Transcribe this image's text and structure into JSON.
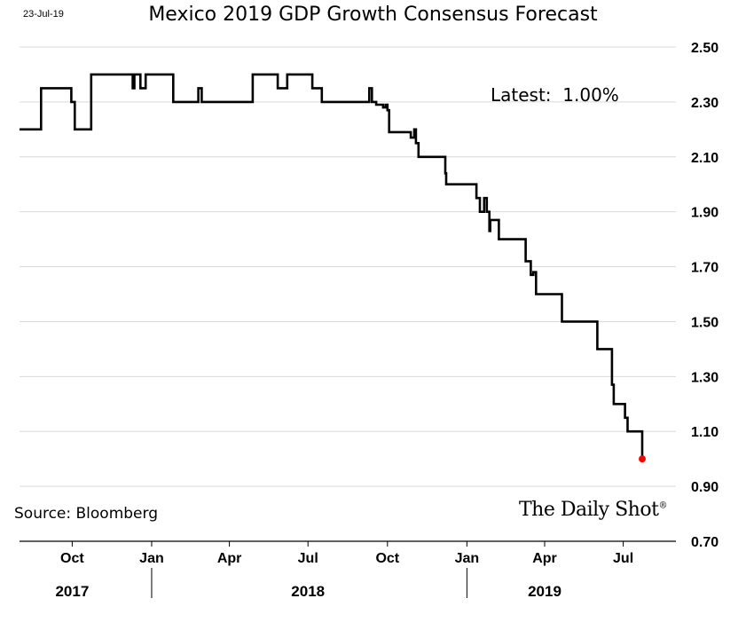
{
  "date_stamp": "23-Jul-19",
  "latest_text": "Latest:  1.00%",
  "source_text": "Source: Bloomberg",
  "logo": {
    "text": "The Daily Shot",
    "mark": "®"
  },
  "colors": {
    "line": "#000000",
    "latest_marker": "#ff0000",
    "grid": "#d9d9d9",
    "axis": "#000000"
  },
  "chart_data": {
    "type": "line",
    "title": "Mexico 2019 GDP Growth Consensus Forecast",
    "xlabel": "",
    "ylabel": "",
    "ylim": [
      0.7,
      2.5
    ],
    "yticks": [
      0.7,
      0.9,
      1.1,
      1.3,
      1.5,
      1.7,
      1.9,
      2.1,
      2.3,
      2.5
    ],
    "ytick_labels": [
      "0.70",
      "0.90",
      "1.10",
      "1.30",
      "1.50",
      "1.70",
      "1.90",
      "2.10",
      "2.30",
      "2.50"
    ],
    "xlim": [
      "2017-08-01",
      "2019-08-31"
    ],
    "month_ticks": [
      {
        "date": "2017-10-01",
        "label": "Oct"
      },
      {
        "date": "2018-01-01",
        "label": "Jan"
      },
      {
        "date": "2018-04-01",
        "label": "Apr"
      },
      {
        "date": "2018-07-01",
        "label": "Jul"
      },
      {
        "date": "2018-10-01",
        "label": "Oct"
      },
      {
        "date": "2019-01-01",
        "label": "Jan"
      },
      {
        "date": "2019-04-01",
        "label": "Apr"
      },
      {
        "date": "2019-07-01",
        "label": "Jul"
      }
    ],
    "year_labels": [
      {
        "label": "2017",
        "date": "2017-10-01"
      },
      {
        "label": "2018",
        "date": "2018-07-01"
      },
      {
        "label": "2019",
        "date": "2019-04-01"
      }
    ],
    "year_dividers": [
      "2018-01-01",
      "2019-01-01"
    ],
    "grid": "horizontal",
    "series": [
      {
        "step": true,
        "points": [
          [
            "2017-08-01",
            2.2
          ],
          [
            "2017-08-26",
            2.35
          ],
          [
            "2017-09-30",
            2.3
          ],
          [
            "2017-10-04",
            2.2
          ],
          [
            "2017-10-23",
            2.4
          ],
          [
            "2017-12-10",
            2.35
          ],
          [
            "2017-12-12",
            2.4
          ],
          [
            "2017-12-19",
            2.35
          ],
          [
            "2017-12-25",
            2.4
          ],
          [
            "2018-01-26",
            2.3
          ],
          [
            "2018-02-24",
            2.35
          ],
          [
            "2018-02-28",
            2.3
          ],
          [
            "2018-04-28",
            2.4
          ],
          [
            "2018-05-27",
            2.35
          ],
          [
            "2018-06-07",
            2.4
          ],
          [
            "2018-07-06",
            2.35
          ],
          [
            "2018-07-17",
            2.3
          ],
          [
            "2018-09-10",
            2.35
          ],
          [
            "2018-09-13",
            2.3
          ],
          [
            "2018-09-18",
            2.29
          ],
          [
            "2018-09-26",
            2.28
          ],
          [
            "2018-09-29",
            2.29
          ],
          [
            "2018-10-01",
            2.27
          ],
          [
            "2018-10-03",
            2.19
          ],
          [
            "2018-10-28",
            2.17
          ],
          [
            "2018-11-01",
            2.2
          ],
          [
            "2018-11-03",
            2.15
          ],
          [
            "2018-11-06",
            2.1
          ],
          [
            "2018-12-07",
            2.04
          ],
          [
            "2018-12-08",
            2.0
          ],
          [
            "2019-01-12",
            1.95
          ],
          [
            "2019-01-16",
            1.9
          ],
          [
            "2019-01-21",
            1.95
          ],
          [
            "2019-01-24",
            1.9
          ],
          [
            "2019-01-27",
            1.83
          ],
          [
            "2019-01-28",
            1.87
          ],
          [
            "2019-02-07",
            1.8
          ],
          [
            "2019-03-10",
            1.72
          ],
          [
            "2019-03-16",
            1.67
          ],
          [
            "2019-03-19",
            1.68
          ],
          [
            "2019-03-22",
            1.6
          ],
          [
            "2019-04-21",
            1.5
          ],
          [
            "2019-06-01",
            1.4
          ],
          [
            "2019-06-18",
            1.27
          ],
          [
            "2019-06-20",
            1.2
          ],
          [
            "2019-07-03",
            1.15
          ],
          [
            "2019-07-06",
            1.1
          ],
          [
            "2019-07-23",
            1.0
          ]
        ]
      }
    ],
    "latest_point": {
      "x": "2019-07-23",
      "y": 1.0
    }
  }
}
